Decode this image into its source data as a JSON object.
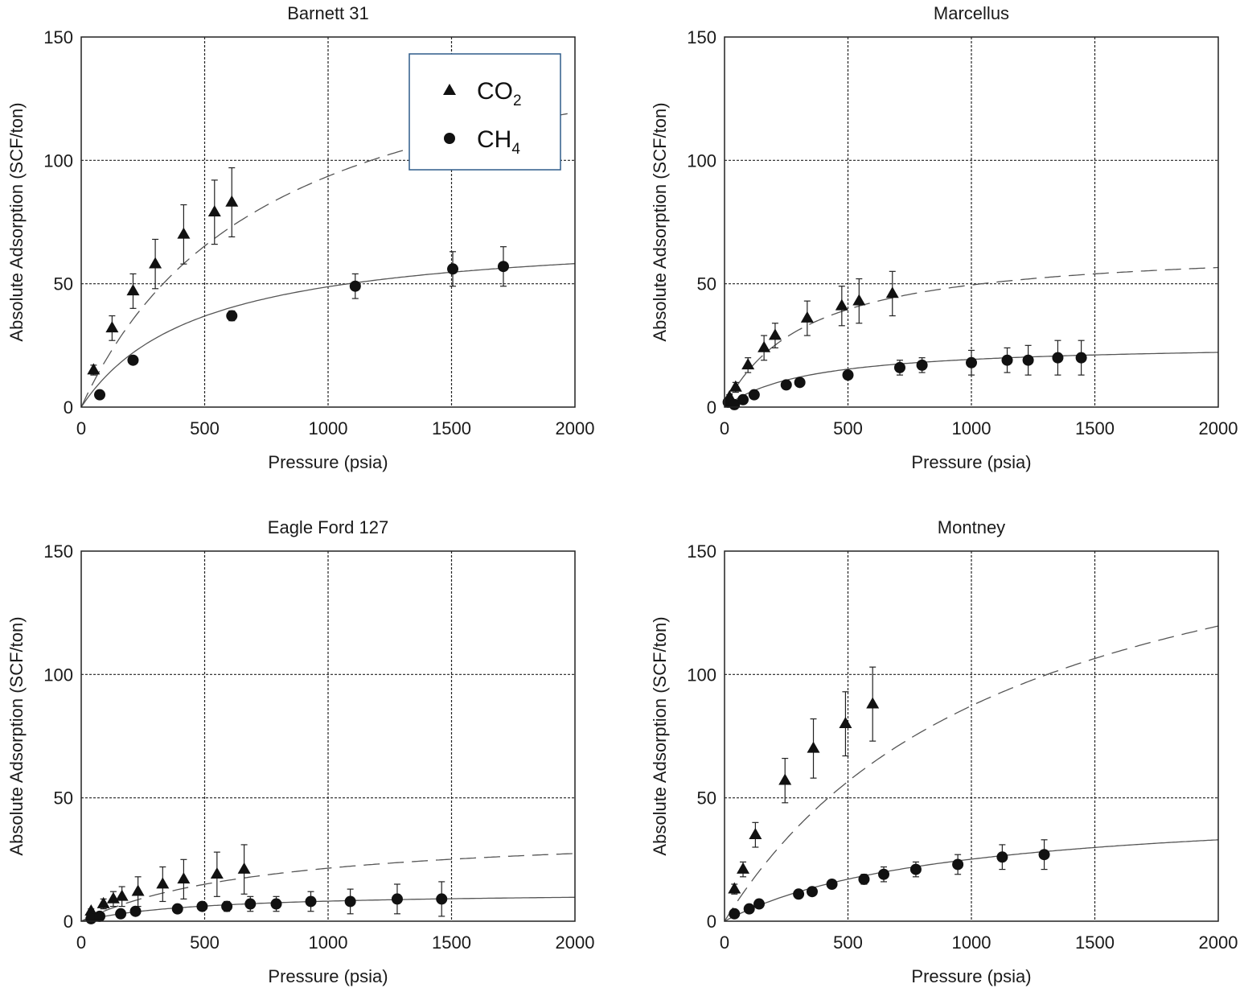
{
  "chart_data": [
    {
      "type": "scatter",
      "title": "Barnett 31",
      "xlabel": "Pressure (psia)",
      "ylabel": "Absolute Adsorption (SCF/ton)",
      "xlim": [
        0,
        2000
      ],
      "ylim": [
        0,
        150
      ],
      "xticks": [
        0,
        500,
        1000,
        1500,
        2000
      ],
      "yticks": [
        0,
        50,
        100,
        150
      ],
      "grid": true,
      "legend": {
        "placement": "top-right",
        "entries": [
          {
            "marker": "triangle",
            "text": "CO",
            "sub": "2"
          },
          {
            "marker": "circle",
            "text": "CH",
            "sub": "4"
          }
        ]
      },
      "series": [
        {
          "marker": "triangle",
          "x": [
            50,
            125,
            210,
            300,
            415,
            540,
            610
          ],
          "y": [
            15,
            32,
            47,
            58,
            70,
            79,
            83
          ],
          "err": [
            2,
            5,
            7,
            10,
            12,
            13,
            14
          ],
          "fit": {
            "style": "dashed",
            "qmax": 165,
            "b": 0.00131
          }
        },
        {
          "marker": "circle",
          "x": [
            75,
            210,
            610,
            1110,
            1505,
            1710
          ],
          "y": [
            5,
            19,
            37,
            49,
            56,
            57
          ],
          "err": [
            0,
            0,
            2,
            5,
            7,
            8
          ],
          "fit": {
            "style": "solid",
            "qmax": 72,
            "b": 0.0021
          }
        }
      ]
    },
    {
      "type": "scatter",
      "title": "Marcellus",
      "xlabel": "Pressure (psia)",
      "ylabel": "Absolute Adsorption (SCF/ton)",
      "xlim": [
        0,
        2000
      ],
      "ylim": [
        0,
        150
      ],
      "xticks": [
        0,
        500,
        1000,
        1500,
        2000
      ],
      "yticks": [
        0,
        50,
        100,
        150
      ],
      "grid": true,
      "series": [
        {
          "marker": "triangle",
          "x": [
            20,
            45,
            95,
            160,
            205,
            335,
            475,
            545,
            680
          ],
          "y": [
            4,
            8,
            17,
            24,
            29,
            36,
            41,
            43,
            46
          ],
          "err": [
            1,
            2,
            3,
            5,
            5,
            7,
            8,
            9,
            9
          ],
          "fit": {
            "style": "dashed",
            "qmax": 66,
            "b": 0.003
          }
        },
        {
          "marker": "circle",
          "x": [
            15,
            40,
            75,
            120,
            250,
            305,
            500,
            710,
            800,
            1000,
            1145,
            1230,
            1350,
            1445
          ],
          "y": [
            2,
            1,
            3,
            5,
            9,
            10,
            13,
            16,
            17,
            18,
            19,
            19,
            20,
            20
          ],
          "err": [
            0,
            0,
            0,
            0,
            0,
            0,
            1,
            3,
            3,
            5,
            5,
            6,
            7,
            7
          ],
          "fit": {
            "style": "solid",
            "qmax": 26,
            "b": 0.0029
          }
        }
      ]
    },
    {
      "type": "scatter",
      "title": "Eagle Ford 127",
      "xlabel": "Pressure (psia)",
      "ylabel": "Absolute Adsorption (SCF/ton)",
      "xlim": [
        0,
        2000
      ],
      "ylim": [
        0,
        150
      ],
      "xticks": [
        0,
        500,
        1000,
        1500,
        2000
      ],
      "yticks": [
        0,
        50,
        100,
        150
      ],
      "grid": true,
      "series": [
        {
          "marker": "triangle",
          "x": [
            40,
            90,
            130,
            165,
            230,
            330,
            415,
            550,
            660
          ],
          "y": [
            4,
            7,
            9,
            10,
            12,
            15,
            17,
            19,
            21
          ],
          "err": [
            1,
            2,
            3,
            4,
            6,
            7,
            8,
            9,
            10
          ],
          "fit": {
            "style": "dashed",
            "qmax": 38,
            "b": 0.0013
          }
        },
        {
          "marker": "circle",
          "x": [
            40,
            75,
            160,
            220,
            390,
            490,
            590,
            685,
            790,
            930,
            1090,
            1280,
            1460
          ],
          "y": [
            1,
            2,
            3,
            4,
            5,
            6,
            6,
            7,
            7,
            8,
            8,
            9,
            9
          ],
          "err": [
            0,
            0,
            0,
            0,
            0,
            0,
            2,
            3,
            3,
            4,
            5,
            6,
            7
          ],
          "fit": {
            "style": "solid",
            "qmax": 12,
            "b": 0.0021
          }
        }
      ]
    },
    {
      "type": "scatter",
      "title": "Montney",
      "xlabel": "Pressure (psia)",
      "ylabel": "Absolute Adsorption (SCF/ton)",
      "xlim": [
        0,
        2000
      ],
      "ylim": [
        0,
        150
      ],
      "xticks": [
        0,
        500,
        1000,
        1500,
        2000
      ],
      "yticks": [
        0,
        50,
        100,
        150
      ],
      "grid": true,
      "series": [
        {
          "marker": "triangle",
          "x": [
            40,
            75,
            125,
            245,
            360,
            490,
            600
          ],
          "y": [
            13,
            21,
            35,
            57,
            70,
            80,
            88
          ],
          "err": [
            2,
            3,
            5,
            9,
            12,
            13,
            15
          ],
          "fit": {
            "style": "dashed",
            "qmax": 190,
            "b": 0.00085
          }
        },
        {
          "marker": "circle",
          "x": [
            40,
            100,
            140,
            300,
            355,
            435,
            565,
            645,
            775,
            945,
            1125,
            1295
          ],
          "y": [
            3,
            5,
            7,
            11,
            12,
            15,
            17,
            19,
            21,
            23,
            26,
            27
          ],
          "err": [
            0,
            0,
            0,
            0,
            0,
            0,
            2,
            3,
            3,
            4,
            5,
            6
          ],
          "fit": {
            "style": "solid",
            "qmax": 48,
            "b": 0.0011
          }
        }
      ]
    }
  ]
}
